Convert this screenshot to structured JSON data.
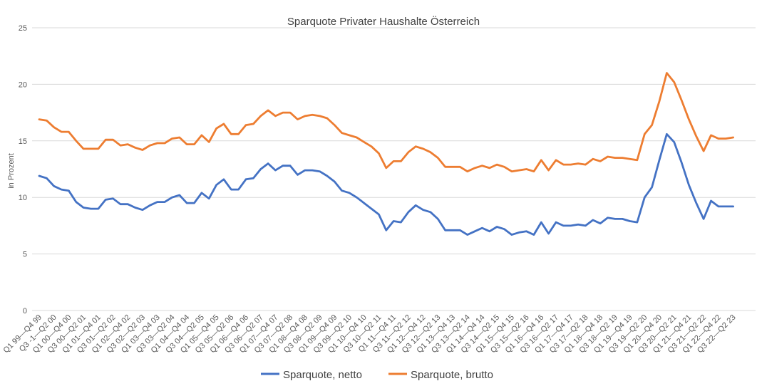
{
  "chart_data": {
    "type": "line",
    "title": "Sparquote Privater Haushalte Österreich",
    "xlabel": "",
    "ylabel": "in Prozent",
    "ylim": [
      0,
      25
    ],
    "yticks": [
      0,
      5,
      10,
      15,
      20,
      25
    ],
    "grid": true,
    "legend_position": "bottom",
    "x_tick_labels": [
      "Q1 99—Q4 99",
      "Q3 -1—Q2 00",
      "Q1 00—Q4 00",
      "Q3 00—Q2 01",
      "Q1 01—Q4 01",
      "Q3 01—Q2 02",
      "Q1 02—Q4 02",
      "Q3 02—Q2 03",
      "Q1 03—Q4 03",
      "Q3 03—Q2 04",
      "Q1 04—Q4 04",
      "Q3 04—Q2 05",
      "Q1 05—Q4 05",
      "Q3 05—Q2 06",
      "Q1 06—Q4 06",
      "Q3 06—Q2 07",
      "Q1 07—Q4 07",
      "Q3 07—Q2 08",
      "Q1 08—Q4 08",
      "Q3 08—Q2 09",
      "Q1 09—Q4 09",
      "Q3 09—Q2 10",
      "Q1 10—Q4 10",
      "Q3 10—Q2 11",
      "Q1 11—Q4 11",
      "Q3 11—Q2 12",
      "Q1 12—Q4 12",
      "Q3 12—Q2 13",
      "Q1 13—Q4 13",
      "Q3 13—Q2 14",
      "Q1 14—Q4 14",
      "Q3 14—Q2 15",
      "Q1 15—Q4 15",
      "Q3 15—Q2 16",
      "Q1 16—Q4 16",
      "Q3 16—Q2 17",
      "Q1 17—Q4 17",
      "Q3 17—Q2 18",
      "Q1 18—Q4 18",
      "Q3 18—Q2 19",
      "Q1 19—Q4 19",
      "Q3 19—Q2 20",
      "Q1 20—Q4 20",
      "Q3 20—Q2 21",
      "Q1 21—Q4 21",
      "Q3 21—Q2 22",
      "Q1 22—Q4 22",
      "Q3 22—Q2 23"
    ],
    "series": [
      {
        "name": "Sparquote, netto",
        "color": "#4472C4",
        "values": [
          11.9,
          11.7,
          11.0,
          10.7,
          10.6,
          9.6,
          9.1,
          9.0,
          9.0,
          9.8,
          9.9,
          9.4,
          9.4,
          9.1,
          8.9,
          9.3,
          9.6,
          9.6,
          10.0,
          10.2,
          9.5,
          9.5,
          10.4,
          9.9,
          11.1,
          11.6,
          10.7,
          10.7,
          11.6,
          11.7,
          12.5,
          13.0,
          12.4,
          12.8,
          12.8,
          12.0,
          12.4,
          12.4,
          12.3,
          11.9,
          11.4,
          10.6,
          10.4,
          10.0,
          9.5,
          9.0,
          8.5,
          7.1,
          7.9,
          7.8,
          8.7,
          9.3,
          8.9,
          8.7,
          8.1,
          7.1,
          7.1,
          7.1,
          6.7,
          7.0,
          7.3,
          7.0,
          7.4,
          7.2,
          6.7,
          6.9,
          7.0,
          6.7,
          7.8,
          6.8,
          7.8,
          7.5,
          7.5,
          7.6,
          7.5,
          8.0,
          7.7,
          8.2,
          8.1,
          8.1,
          7.9,
          7.8,
          10.0,
          10.9,
          13.3,
          15.6,
          14.9,
          13.1,
          11.1,
          9.5,
          8.1,
          9.7,
          9.2,
          9.2,
          9.2
        ]
      },
      {
        "name": "Sparquote, brutto",
        "color": "#ED7D31",
        "values": [
          16.9,
          16.8,
          16.2,
          15.8,
          15.8,
          15.0,
          14.3,
          14.3,
          14.3,
          15.1,
          15.1,
          14.6,
          14.7,
          14.4,
          14.2,
          14.6,
          14.8,
          14.8,
          15.2,
          15.3,
          14.7,
          14.7,
          15.5,
          14.9,
          16.1,
          16.5,
          15.6,
          15.6,
          16.4,
          16.5,
          17.2,
          17.7,
          17.2,
          17.5,
          17.5,
          16.9,
          17.2,
          17.3,
          17.2,
          17.0,
          16.4,
          15.7,
          15.5,
          15.3,
          14.9,
          14.5,
          13.9,
          12.6,
          13.2,
          13.2,
          14.0,
          14.5,
          14.3,
          14.0,
          13.5,
          12.7,
          12.7,
          12.7,
          12.3,
          12.6,
          12.8,
          12.6,
          12.9,
          12.7,
          12.3,
          12.4,
          12.5,
          12.3,
          13.3,
          12.4,
          13.3,
          12.9,
          12.9,
          13.0,
          12.9,
          13.4,
          13.2,
          13.6,
          13.5,
          13.5,
          13.4,
          13.3,
          15.6,
          16.4,
          18.5,
          21.0,
          20.2,
          18.6,
          16.9,
          15.4,
          14.1,
          15.5,
          15.2,
          15.2,
          15.3
        ]
      }
    ]
  }
}
